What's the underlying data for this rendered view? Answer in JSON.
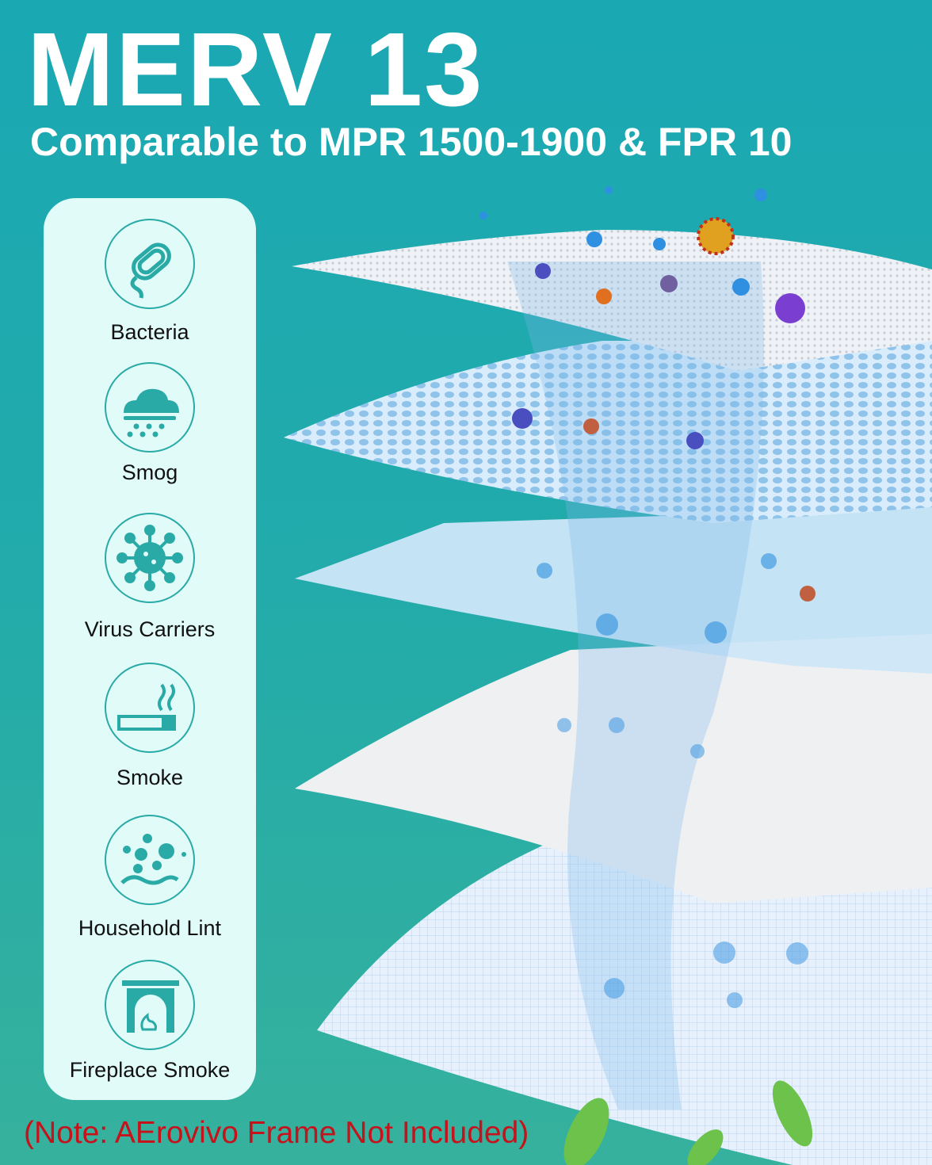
{
  "header": {
    "title": "MERV 13",
    "subtitle": "Comparable to MPR 1500-1900 & FPR 10"
  },
  "panel": {
    "items": [
      {
        "label": "Bacteria",
        "icon": "bacteria-icon"
      },
      {
        "label": "Smog",
        "icon": "smog-cloud-icon"
      },
      {
        "label": "Virus Carriers",
        "icon": "virus-icon"
      },
      {
        "label": "Smoke",
        "icon": "cigarette-smoke-icon"
      },
      {
        "label": "Household Lint",
        "icon": "lint-particles-icon"
      },
      {
        "label": "Fireplace Smoke",
        "icon": "fireplace-icon"
      }
    ]
  },
  "note": "(Note: AErovivo Frame Not Included)",
  "colors": {
    "accent": "#2aaaa6",
    "panel": "#e0fbf8",
    "note": "#c6121a"
  }
}
